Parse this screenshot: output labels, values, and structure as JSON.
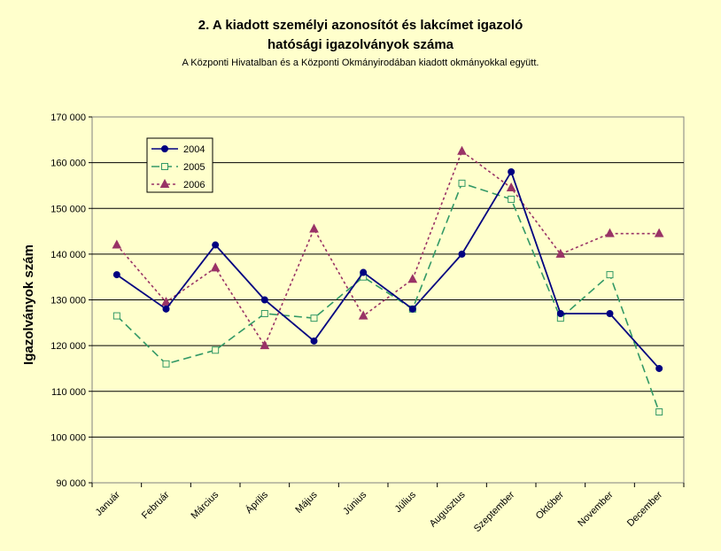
{
  "chart_data": {
    "type": "line",
    "title_line1": "2. A kiadott személyi azonosítót és lakcímet igazoló",
    "title_line2": "hatósági igazolványok száma",
    "subtitle": "A Központi Hivatalban és a Központi Okmányirodában kiadott okmányokkal együtt.",
    "ylabel": "Igazolványok szám",
    "xlabel": "",
    "categories": [
      "Január",
      "Február",
      "Március",
      "Április",
      "Május",
      "Június",
      "Július",
      "Augusztus",
      "Szeptember",
      "Október",
      "November",
      "December"
    ],
    "ylim": [
      90000,
      170000
    ],
    "yticks": [
      "90 000",
      "100 000",
      "110 000",
      "120 000",
      "130 000",
      "140 000",
      "150 000",
      "160 000",
      "170 000"
    ],
    "grid": true,
    "legend_position": "top-left",
    "series": [
      {
        "name": "2004",
        "color": "#000080",
        "marker": "circle",
        "dash": "solid",
        "values": [
          135500,
          128000,
          142000,
          130000,
          121000,
          136000,
          128000,
          140000,
          158000,
          127000,
          127000,
          115000
        ]
      },
      {
        "name": "2005",
        "color": "#339966",
        "marker": "square-open",
        "dash": "dashed",
        "values": [
          126500,
          116000,
          119000,
          127000,
          126000,
          135000,
          128000,
          155500,
          152000,
          126000,
          135500,
          105500
        ]
      },
      {
        "name": "2006",
        "color": "#993366",
        "marker": "triangle",
        "dash": "dotted",
        "values": [
          142000,
          129500,
          137000,
          120000,
          145500,
          126500,
          134500,
          162500,
          154500,
          140000,
          144500,
          144500
        ]
      }
    ]
  }
}
